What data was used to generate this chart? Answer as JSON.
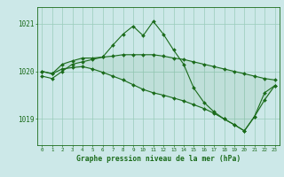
{
  "title": "Graphe pression niveau de la mer (hPa)",
  "bg_color": "#cce8e8",
  "grid_color": "#99ccbb",
  "line_color": "#1a6b1a",
  "hours": [
    0,
    1,
    2,
    3,
    4,
    5,
    6,
    7,
    8,
    9,
    10,
    11,
    12,
    13,
    14,
    15,
    16,
    17,
    18,
    19,
    20,
    21,
    22,
    23
  ],
  "line_peak": [
    1019.9,
    1019.85,
    1020.0,
    1020.15,
    1020.2,
    1020.25,
    1020.3,
    1020.55,
    1020.78,
    1020.95,
    1020.75,
    1021.05,
    1020.78,
    1020.45,
    1020.15,
    1019.65,
    1019.35,
    1019.15,
    1019.0,
    1018.88,
    1018.75,
    1019.05,
    1019.55,
    1019.7
  ],
  "line_upper": [
    1020.0,
    1019.95,
    1020.15,
    1020.22,
    1020.28,
    1020.28,
    1020.3,
    1020.32,
    1020.35,
    1020.35,
    1020.35,
    1020.35,
    1020.32,
    1020.28,
    1020.25,
    1020.2,
    1020.15,
    1020.1,
    1020.05,
    1020.0,
    1019.95,
    1019.9,
    1019.85,
    1019.82
  ],
  "line_lower": [
    1020.0,
    1019.95,
    1020.05,
    1020.08,
    1020.1,
    1020.05,
    1019.98,
    1019.9,
    1019.82,
    1019.72,
    1019.62,
    1019.55,
    1019.5,
    1019.44,
    1019.38,
    1019.3,
    1019.22,
    1019.12,
    1019.0,
    1018.88,
    1018.75,
    1019.05,
    1019.4,
    1019.7
  ],
  "yticks": [
    1019,
    1020,
    1021
  ],
  "ylim": [
    1018.45,
    1021.35
  ],
  "xlim": [
    -0.5,
    23.5
  ]
}
